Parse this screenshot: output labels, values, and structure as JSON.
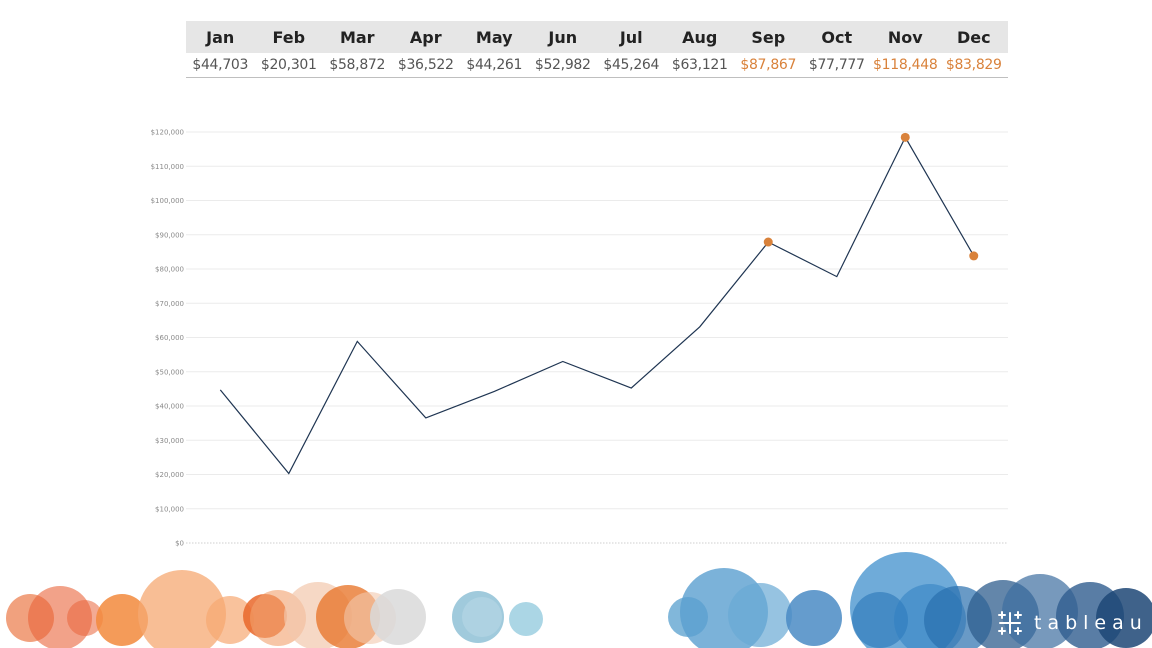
{
  "months": [
    "Jan",
    "Feb",
    "Mar",
    "Apr",
    "May",
    "Jun",
    "Jul",
    "Aug",
    "Sep",
    "Oct",
    "Nov",
    "Dec"
  ],
  "table_values": [
    "$44,703",
    "$20,301",
    "$58,872",
    "$36,522",
    "$44,261",
    "$52,982",
    "$45,264",
    "$63,121",
    "$87,867",
    "$77,777",
    "$118,448",
    "$83,829"
  ],
  "highlighted_months": [
    "Sep",
    "Nov",
    "Dec"
  ],
  "colors": {
    "line": "#1f3552",
    "highlight": "#d9823b",
    "normal_text": "#555555",
    "gridline": "#ebebeb",
    "header_bg": "#e6e6e6"
  },
  "brand": {
    "name": "tableau",
    "icon": "tableau-cross-logo-icon"
  },
  "chart_data": {
    "type": "line",
    "x": [
      "Jan",
      "Feb",
      "Mar",
      "Apr",
      "May",
      "Jun",
      "Jul",
      "Aug",
      "Sep",
      "Oct",
      "Nov",
      "Dec"
    ],
    "series": [
      {
        "values": [
          44703,
          20301,
          58872,
          36522,
          44261,
          52982,
          45264,
          63121,
          87867,
          77777,
          118448,
          83829
        ]
      }
    ],
    "highlight_points": [
      "Sep",
      "Nov",
      "Dec"
    ],
    "ylim": [
      0,
      120000
    ],
    "yticks": [
      "$0",
      "$10,000",
      "$20,000",
      "$30,000",
      "$40,000",
      "$50,000",
      "$60,000",
      "$70,000",
      "$80,000",
      "$90,000",
      "$100,000",
      "$110,000",
      "$120,000"
    ],
    "grid": true,
    "title": "",
    "xlabel": "",
    "ylabel": ""
  }
}
